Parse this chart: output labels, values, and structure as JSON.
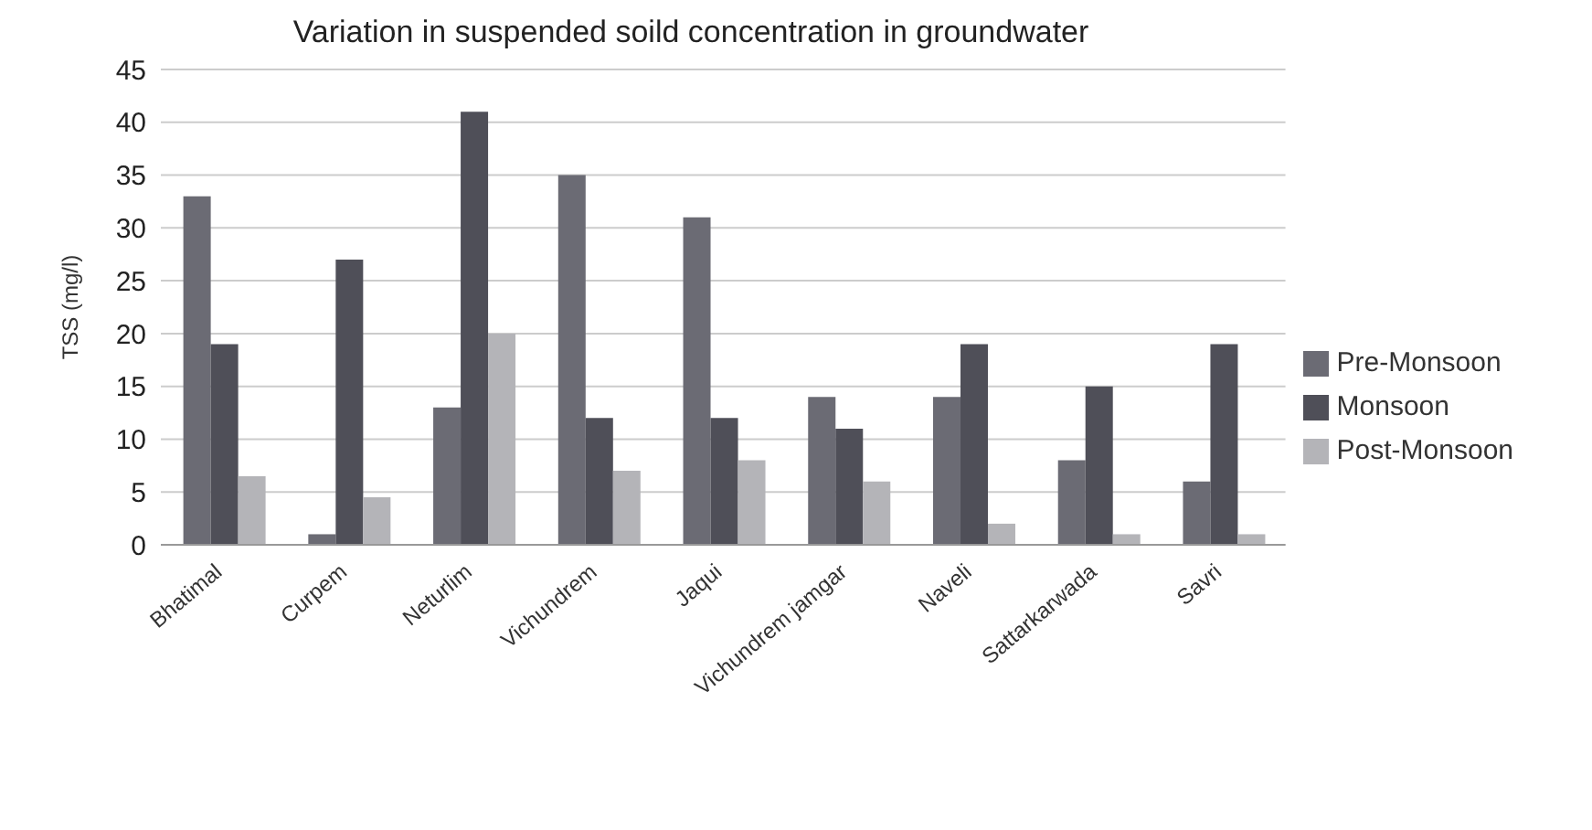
{
  "chart_data": {
    "type": "bar",
    "title": "Variation in suspended soild concentration in groundwater",
    "ylabel": "TSS (mg/l)",
    "categories": [
      "Bhatimal",
      "Curpem",
      "Neturlim",
      "Vichundrem",
      "Jaqui",
      "Vichundrem jamgar",
      "Naveli",
      "Sattarkarwada",
      "Savri"
    ],
    "series": [
      {
        "name": "Pre-Monsoon",
        "color": "#6b6b74",
        "values": [
          33,
          1,
          13,
          35,
          31,
          14,
          14,
          8,
          6
        ]
      },
      {
        "name": "Monsoon",
        "color": "#4f4f58",
        "values": [
          19,
          27,
          41,
          12,
          12,
          11,
          19,
          15,
          19
        ]
      },
      {
        "name": "Post-Monsoon",
        "color": "#b4b4b8",
        "values": [
          6.5,
          4.5,
          20,
          7,
          8,
          6,
          2,
          1,
          1
        ]
      }
    ],
    "ylim": [
      0,
      45
    ],
    "yticks": [
      0,
      5,
      10,
      15,
      20,
      25,
      30,
      35,
      40,
      45
    ],
    "grid": "y",
    "legend": "right"
  }
}
